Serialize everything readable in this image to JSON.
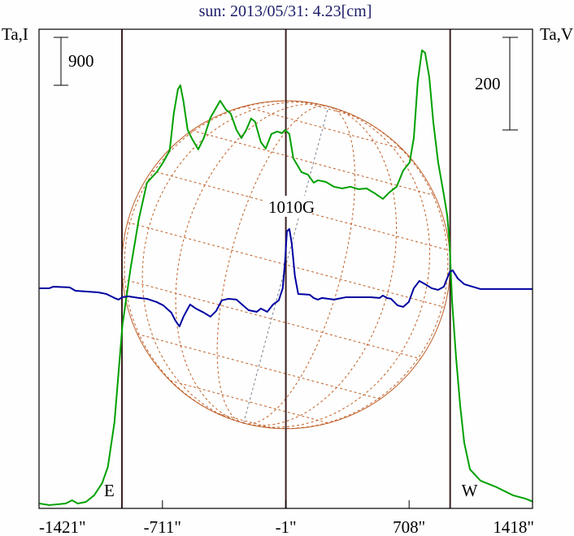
{
  "chart_data": {
    "type": "line",
    "title": "sun: 2013/05/31: 4.23[cm]",
    "ylabel_left": "Ta,I",
    "ylabel_right": "Ta,V",
    "xlim": [
      -1421,
      1418
    ],
    "ylim_I": [
      -92,
      8906
    ],
    "ylim_V": [
      -472,
      563
    ],
    "x_tick_labels": [
      {
        "value": -1421,
        "label": "-1421\""
      },
      {
        "value": -711,
        "label": "-711\""
      },
      {
        "value": -1,
        "label": "-1\""
      },
      {
        "value": 708,
        "label": "708\""
      },
      {
        "value": 1418,
        "label": "1418\""
      }
    ],
    "vertical_lines": [
      -944,
      -1,
      944
    ],
    "limb_labels": [
      {
        "text": "E",
        "x": -944
      },
      {
        "text": "W",
        "x": 944
      }
    ],
    "scale_bars": {
      "I": {
        "value": 900,
        "label": "900"
      },
      "V": {
        "value": 200,
        "label": "200"
      }
    },
    "annotations": [
      {
        "text": "1010G",
        "x": -1
      }
    ],
    "solar_disk": {
      "radius_arcsec": 944,
      "grid_step_deg": 20,
      "rotation_deg": 15
    },
    "colors": {
      "I": "#00a000",
      "V": "#0000a0",
      "frame": "#000000",
      "vlines": "#3c2020",
      "disk": "#c0602a",
      "title": "#1c1c6a"
    },
    "series": [
      {
        "name": "I",
        "axis": "left",
        "color": "#00a000",
        "x": [
          -1418,
          -1362,
          -1268,
          -1231,
          -1198,
          -1151,
          -1104,
          -1058,
          -1025,
          -987,
          -941,
          -894,
          -847,
          -800,
          -744,
          -707,
          -669,
          -646,
          -622,
          -608,
          -590,
          -566,
          -543,
          -505,
          -473,
          -435,
          -379,
          -346,
          -318,
          -285,
          -257,
          -229,
          -201,
          -178,
          -145,
          -117,
          -84,
          -51,
          -23,
          -5,
          19,
          42,
          89,
          126,
          159,
          183,
          229,
          276,
          323,
          370,
          417,
          463,
          510,
          557,
          594,
          636,
          674,
          711,
          735,
          758,
          782,
          800,
          824,
          847,
          875,
          908,
          927,
          941,
          955,
          978,
          1002,
          1025,
          1058,
          1119,
          1212,
          1306,
          1376,
          1423
        ],
        "y": [
          0,
          -30,
          0,
          61,
          0,
          30,
          153,
          381,
          686,
          1525,
          3355,
          4423,
          5338,
          6024,
          6222,
          6405,
          6634,
          7320,
          7778,
          7854,
          7549,
          7015,
          6863,
          6649,
          6863,
          7244,
          7564,
          7396,
          7320,
          7015,
          6863,
          7015,
          7229,
          7168,
          6786,
          6664,
          6939,
          6985,
          6954,
          7015,
          6939,
          6481,
          6222,
          6176,
          6024,
          6070,
          6039,
          5948,
          5917,
          5948,
          5902,
          5917,
          5826,
          5719,
          5841,
          5948,
          6253,
          6405,
          6863,
          7930,
          8510,
          8464,
          8006,
          7168,
          6405,
          5795,
          5414,
          4880,
          3813,
          2745,
          1830,
          1144,
          641,
          427,
          305,
          153,
          92,
          31
        ]
      },
      {
        "name": "V",
        "axis": "right",
        "color": "#0000a0",
        "x": [
          -1418,
          -1362,
          -1338,
          -1245,
          -1212,
          -1081,
          -1034,
          -987,
          -964,
          -941,
          -908,
          -847,
          -800,
          -744,
          -707,
          -660,
          -636,
          -613,
          -590,
          -552,
          -519,
          -473,
          -435,
          -402,
          -370,
          -332,
          -285,
          -253,
          -215,
          -168,
          -145,
          -108,
          -75,
          -42,
          -19,
          -5,
          5,
          19,
          33,
          51,
          70,
          136,
          159,
          183,
          206,
          276,
          346,
          417,
          487,
          538,
          557,
          580,
          604,
          641,
          674,
          706,
          735,
          767,
          800,
          838,
          875,
          908,
          941,
          959,
          988,
          1025,
          1072,
          1119,
          1423
        ],
        "y": [
          3.5,
          3.5,
          7.0,
          5.3,
          -1.8,
          -5.3,
          -8.8,
          -17.5,
          -21.0,
          -15.8,
          -14.0,
          -17.5,
          -19.3,
          -26.3,
          -33.3,
          -49.1,
          -66.7,
          -78.9,
          -57.9,
          -31.6,
          -40.3,
          -49.1,
          -57.9,
          -45.6,
          -22.8,
          -19.3,
          -21.0,
          -31.6,
          -43.9,
          -47.4,
          -40.3,
          -47.4,
          -31.6,
          -22.8,
          3.5,
          64.9,
          126.3,
          131.6,
          100.0,
          29.8,
          -8.8,
          -10.5,
          -17.5,
          -21.0,
          -17.5,
          -21.0,
          -15.8,
          -15.8,
          -15.8,
          -17.5,
          -12.3,
          -17.5,
          -19.3,
          -33.3,
          -36.8,
          -26.3,
          3.5,
          19.3,
          12.3,
          3.5,
          0,
          7.0,
          38.6,
          42.1,
          24.6,
          12.3,
          7.0,
          1.8,
          1.8
        ]
      }
    ]
  }
}
